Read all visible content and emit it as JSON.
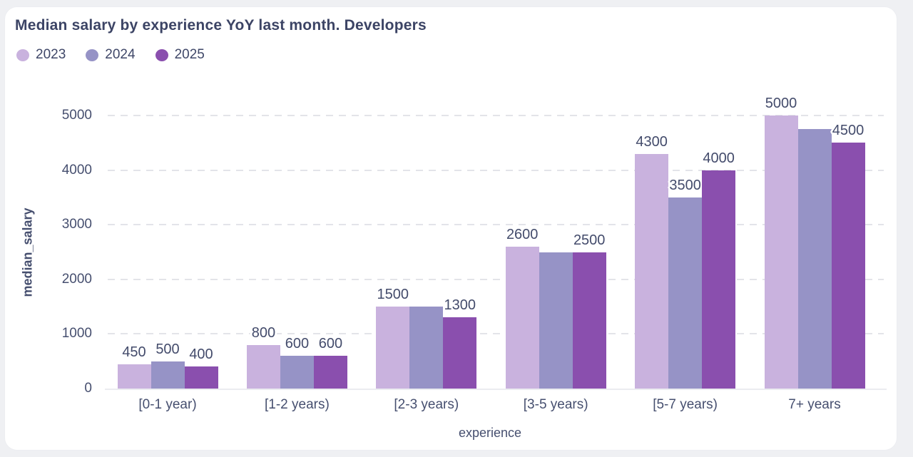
{
  "title": "Median salary by experience YoY last month. Developers",
  "colors": {
    "page_background": "#eff0f3",
    "card_background": "#ffffff",
    "title_text": "#3c4465",
    "axis_text": "#464f6f",
    "grid_line": "#e3e4e9",
    "axis_line": "#ebecf0",
    "series_2023": "#c9b2de",
    "series_2024": "#9693c6",
    "series_2025": "#8a4fae",
    "value_label_halo": "#ffffff"
  },
  "legend": {
    "items": [
      {
        "label": "2023",
        "color": "#c9b2de"
      },
      {
        "label": "2024",
        "color": "#9693c6"
      },
      {
        "label": "2025",
        "color": "#8a4fae"
      }
    ]
  },
  "chart_data": {
    "type": "bar",
    "title": "Median salary by experience YoY last month. Developers",
    "xlabel": "experience",
    "ylabel": "median_salary",
    "ylim": [
      0,
      5000
    ],
    "yticks": [
      0,
      1000,
      2000,
      3000,
      4000,
      5000
    ],
    "grid": "horizontal-dashed",
    "legend_position": "top-left",
    "categories": [
      "[0-1 year)",
      "[1-2 years)",
      "[2-3 years)",
      "[3-5 years)",
      "[5-7 years)",
      "7+ years"
    ],
    "series": [
      {
        "name": "2023",
        "color": "#c9b2de",
        "values": [
          450,
          800,
          1500,
          2600,
          4300,
          5000
        ],
        "value_labels": [
          "450",
          "800",
          "1500",
          "2600",
          "4300",
          "5000"
        ]
      },
      {
        "name": "2024",
        "color": "#9693c6",
        "values": [
          500,
          600,
          1500,
          2500,
          3500,
          4750
        ],
        "value_labels": [
          "500",
          "600",
          null,
          null,
          "3500",
          null
        ]
      },
      {
        "name": "2025",
        "color": "#8a4fae",
        "values": [
          400,
          600,
          1300,
          2500,
          4000,
          4500
        ],
        "value_labels": [
          "400",
          "600",
          "1300",
          "2500",
          "4000",
          "4500"
        ]
      }
    ]
  }
}
